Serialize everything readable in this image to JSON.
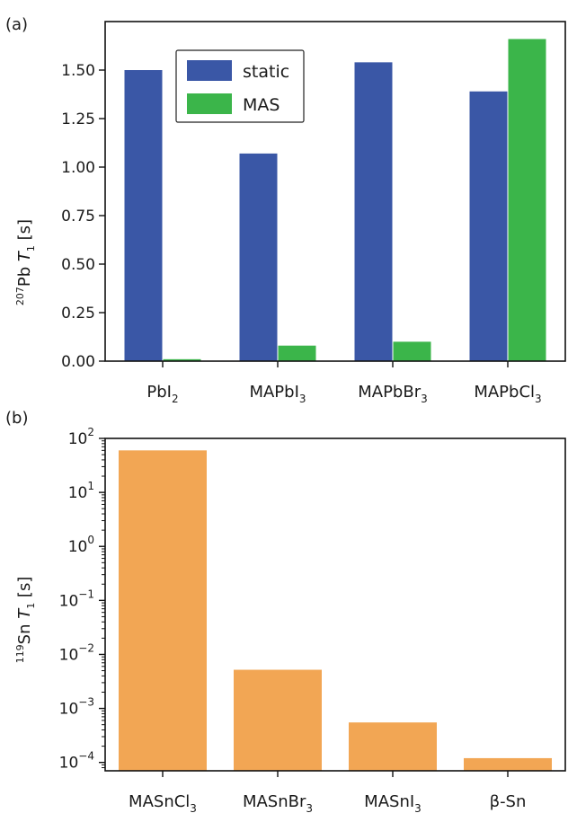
{
  "chart_data": [
    {
      "panel_label": "(a)",
      "type": "bar",
      "ylabel": {
        "sup": "207",
        "main": "Pb ",
        "italic": "T",
        "sub": "1",
        "tail": " [s]"
      },
      "categories": [
        {
          "main": "PbI",
          "sub": "2"
        },
        {
          "main": "MAPbI",
          "sub": "3"
        },
        {
          "main": "MAPbBr",
          "sub": "3"
        },
        {
          "main": "MAPbCl",
          "sub": "3"
        }
      ],
      "series": [
        {
          "name": "static",
          "color": "#3a57a6",
          "values": [
            1.5,
            1.07,
            1.54,
            1.39
          ]
        },
        {
          "name": "MAS",
          "color": "#3bb54a",
          "values": [
            0.01,
            0.08,
            0.1,
            1.66
          ]
        }
      ],
      "ylim": [
        0,
        1.75
      ],
      "yticks": [
        "0.00",
        "0.25",
        "0.50",
        "0.75",
        "1.00",
        "1.25",
        "1.50"
      ],
      "legend_position": "upper-center",
      "grid": false
    },
    {
      "panel_label": "(b)",
      "type": "bar",
      "yscale": "log",
      "ylabel": {
        "sup": "119",
        "main": "Sn ",
        "italic": "T",
        "sub": "1",
        "tail": " [s]"
      },
      "categories": [
        {
          "main": "MASnCl",
          "sub": "3"
        },
        {
          "main": "MASnBr",
          "sub": "3"
        },
        {
          "main": "MASnI",
          "sub": "3"
        },
        {
          "main": "β-Sn",
          "sub": ""
        }
      ],
      "series": [
        {
          "color": "#f2a654",
          "values": [
            60,
            0.0052,
            0.00055,
            0.00012
          ]
        }
      ],
      "ylim": [
        7e-05,
        100
      ],
      "yticks": [
        {
          "base": "10",
          "exp": "2"
        },
        {
          "base": "10",
          "exp": "1"
        },
        {
          "base": "10",
          "exp": "0"
        },
        {
          "base": "10",
          "exp": "−1"
        },
        {
          "base": "10",
          "exp": "−2"
        },
        {
          "base": "10",
          "exp": "−3"
        },
        {
          "base": "10",
          "exp": "−4"
        }
      ],
      "grid": false
    }
  ]
}
